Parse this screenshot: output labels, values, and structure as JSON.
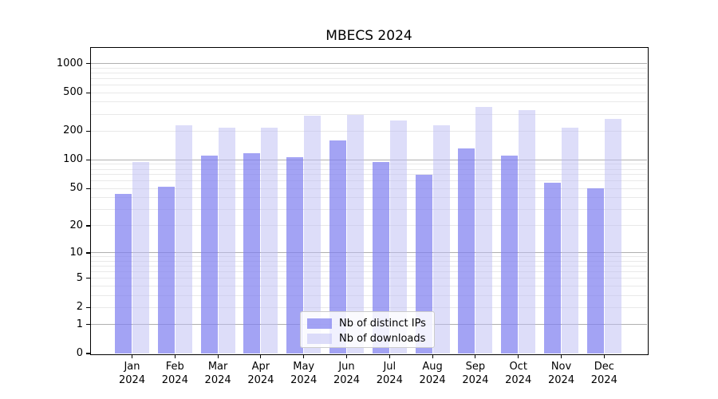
{
  "chart_data": {
    "type": "bar",
    "title": "MBECS 2024",
    "categories": [
      "Jan 2024",
      "Feb 2024",
      "Mar 2024",
      "Apr 2024",
      "May 2024",
      "Jun 2024",
      "Jul 2024",
      "Aug 2024",
      "Sep 2024",
      "Oct 2024",
      "Nov 2024",
      "Dec 2024"
    ],
    "series": [
      {
        "name": "Nb of distinct IPs",
        "color": "rgba(127,127,240,0.72)",
        "values": [
          44,
          52,
          112,
          118,
          107,
          161,
          96,
          70,
          133,
          112,
          58,
          50
        ]
      },
      {
        "name": "Nb of downloads",
        "color": "rgba(187,187,243,0.5)",
        "values": [
          95,
          230,
          218,
          215,
          290,
          295,
          260,
          230,
          355,
          330,
          215,
          268
        ]
      }
    ],
    "xlabel": "",
    "ylabel": "",
    "yscale": "log1p",
    "ylim": [
      0,
      1460
    ],
    "yticks": [
      0,
      1,
      2,
      5,
      10,
      20,
      50,
      100,
      200,
      500,
      1000
    ],
    "grid": {
      "major": [
        1,
        10,
        100,
        1000
      ],
      "minor": [
        2,
        3,
        4,
        5,
        6,
        7,
        8,
        9,
        20,
        30,
        40,
        50,
        60,
        70,
        80,
        90,
        200,
        300,
        400,
        500,
        600,
        700,
        800,
        900
      ],
      "major_color": "#b0b0b0",
      "minor_color": "#e9e9e9"
    },
    "legend_position": "lower center",
    "spine_color": "#000000"
  }
}
